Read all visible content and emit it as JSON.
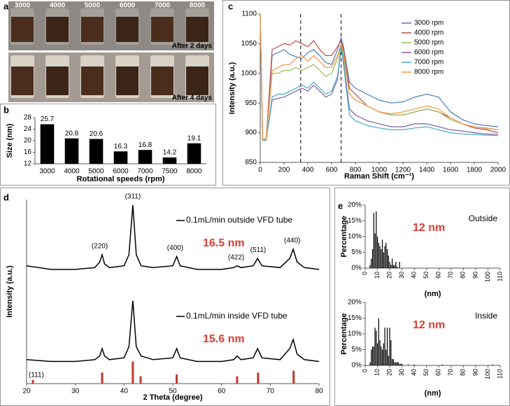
{
  "photo_panel": {
    "panel_label": "a",
    "tube_labels": [
      "3000",
      "4000",
      "5000",
      "6000",
      "7000",
      "8000"
    ],
    "captions": [
      "After 2 days",
      "After 4 days"
    ]
  },
  "chart_data": [
    {
      "type": "bar",
      "panel_label": "b",
      "categories": [
        "3000",
        "4000",
        "5000",
        "6000",
        "7000",
        "7500",
        "8000"
      ],
      "values": [
        25.7,
        20.8,
        20.6,
        16.3,
        16.8,
        14.2,
        19.1
      ],
      "color": "#000000",
      "ylim": [
        12,
        28
      ],
      "yticks": [
        12,
        16,
        20,
        24,
        28
      ],
      "xlabel": "Rotational speeds (rpm)",
      "ylabel": "Size (nm)"
    },
    {
      "type": "line",
      "panel_label": "c",
      "x": [
        0,
        20,
        50,
        100,
        150,
        200,
        250,
        300,
        350,
        400,
        450,
        500,
        550,
        600,
        650,
        680,
        700,
        750,
        800,
        900,
        1000,
        1100,
        1200,
        1300,
        1400,
        1500,
        1600,
        1700,
        1800,
        1900,
        2000
      ],
      "series": [
        {
          "name": "3000 rpm",
          "color": "#4a7ebb",
          "values": [
            1100,
            890,
            890,
            1030,
            1035,
            1040,
            1032,
            1028,
            1025,
            1035,
            1040,
            1030,
            1018,
            1015,
            1040,
            1060,
            1045,
            985,
            975,
            965,
            955,
            950,
            952,
            960,
            965,
            960,
            935,
            922,
            915,
            912,
            910
          ]
        },
        {
          "name": "4000 rpm",
          "color": "#be4b48",
          "values": [
            1100,
            888,
            888,
            1040,
            1045,
            1050,
            1048,
            1055,
            1050,
            1045,
            1055,
            1040,
            1030,
            1030,
            1045,
            1055,
            1040,
            975,
            965,
            945,
            935,
            930,
            930,
            935,
            940,
            935,
            925,
            915,
            908,
            905,
            900
          ]
        },
        {
          "name": "5000 rpm",
          "color": "#98b954",
          "values": [
            1100,
            890,
            890,
            1000,
            1000,
            1005,
            1005,
            1010,
            1005,
            1010,
            1015,
            1005,
            995,
            1000,
            1025,
            1050,
            1030,
            965,
            955,
            945,
            935,
            930,
            930,
            935,
            940,
            935,
            922,
            915,
            910,
            908,
            905
          ]
        },
        {
          "name": "6000 rpm",
          "color": "#7d60a0",
          "values": [
            1100,
            888,
            888,
            955,
            958,
            960,
            965,
            970,
            975,
            970,
            980,
            970,
            960,
            965,
            990,
            1045,
            1020,
            940,
            930,
            920,
            915,
            910,
            910,
            915,
            915,
            910,
            905,
            903,
            900,
            898,
            897
          ]
        },
        {
          "name": "7000 rpm",
          "color": "#46aac5",
          "values": [
            1100,
            887,
            887,
            960,
            965,
            965,
            970,
            975,
            980,
            975,
            985,
            975,
            965,
            970,
            995,
            1048,
            1015,
            930,
            920,
            912,
            908,
            905,
            905,
            908,
            910,
            905,
            900,
            898,
            897,
            896,
            895
          ]
        },
        {
          "name": "8000 rpm",
          "color": "#f79646",
          "values": [
            1100,
            888,
            888,
            1005,
            1010,
            1015,
            1015,
            1025,
            1030,
            1020,
            1030,
            1020,
            1010,
            1010,
            1030,
            1050,
            1035,
            965,
            955,
            945,
            935,
            932,
            935,
            940,
            945,
            940,
            925,
            915,
            910,
            907,
            905
          ]
        }
      ],
      "xlim": [
        0,
        2000
      ],
      "xticks": [
        0,
        200,
        400,
        600,
        800,
        1000,
        1200,
        1400,
        1600,
        1800,
        2000
      ],
      "ylim": [
        850,
        1100
      ],
      "yticks": [
        850,
        900,
        950,
        1000,
        1050,
        1100
      ],
      "vlines": [
        340,
        680
      ],
      "xlabel": "Raman Shift (cm⁻¹)",
      "ylabel": "Intensity (a.u.)"
    },
    {
      "type": "line",
      "panel_label": "d",
      "x": [
        20,
        25,
        30,
        34,
        35,
        35.5,
        36,
        37,
        40,
        41,
        41.8,
        42.5,
        43.5,
        46,
        50,
        50.8,
        51.5,
        55,
        60,
        62.5,
        63.2,
        64,
        66.5,
        67.4,
        68.3,
        72,
        74,
        74.7,
        75.5,
        77,
        80
      ],
      "series": [
        {
          "name": "0.1mL/min outside VFD tube",
          "size_label": "16.5 nm",
          "color": "#000000",
          "values": [
            64,
            62,
            62,
            63,
            66,
            70,
            65,
            63,
            64,
            70,
            97,
            70,
            64,
            63,
            64,
            69,
            64,
            62,
            62,
            63,
            64,
            63,
            64,
            68,
            64,
            63,
            68,
            73,
            66,
            63,
            62
          ]
        },
        {
          "name": "0.1mL/min inside VFD tube",
          "size_label": "15.6 nm",
          "color": "#000000",
          "values": [
            13,
            12,
            12,
            13,
            15,
            19,
            15,
            13,
            14,
            20,
            45,
            20,
            15,
            13,
            14,
            19,
            14,
            12,
            12,
            13,
            15,
            13,
            14,
            19,
            14,
            13,
            19,
            24,
            16,
            13,
            12
          ]
        }
      ],
      "reference": {
        "color": "#c0392b",
        "x": [
          21.3,
          35.5,
          41.8,
          43.4,
          50.8,
          63.2,
          67.5,
          74.8
        ],
        "values": [
          2,
          6,
          12,
          4,
          5,
          4,
          6,
          7
        ]
      },
      "peak_labels": [
        {
          "label": "(111)",
          "x": 22
        },
        {
          "label": "(220)",
          "x": 35
        },
        {
          "label": "(311)",
          "x": 41.8
        },
        {
          "label": "(400)",
          "x": 50.5
        },
        {
          "label": "(422)",
          "x": 63
        },
        {
          "label": "(511)",
          "x": 67.5
        },
        {
          "label": "(440)",
          "x": 74.5
        }
      ],
      "xlim": [
        20,
        80
      ],
      "xticks": [
        20,
        30,
        40,
        50,
        60,
        70,
        80
      ],
      "ylim": [
        0,
        100
      ],
      "xlabel": "2 Theta (degree)",
      "ylabel": "Intensity (a.u.)"
    },
    {
      "type": "column",
      "panel_label": "e",
      "group_label": "Outside",
      "size_label": "12 nm",
      "color": "#000000",
      "x": [
        4,
        5,
        6,
        7,
        8,
        9,
        10,
        11,
        12,
        13,
        14,
        15,
        16,
        17,
        18,
        19,
        20,
        21,
        22,
        23,
        24,
        25,
        26,
        28
      ],
      "values": [
        1,
        3,
        6,
        17.5,
        11,
        18,
        10,
        8,
        7,
        6,
        9,
        5,
        7,
        8,
        6,
        4,
        2,
        1,
        3,
        1,
        1,
        2,
        0.5,
        2
      ],
      "xlim": [
        0,
        110
      ],
      "xticks": [
        0,
        10,
        20,
        30,
        40,
        50,
        60,
        70,
        80,
        90,
        100,
        110
      ],
      "ylim": [
        0,
        20
      ],
      "yticks": [
        {
          "value": 0,
          "label": "0%"
        },
        {
          "value": 5,
          "label": "5%"
        },
        {
          "value": 10,
          "label": "10%"
        },
        {
          "value": 15,
          "label": "15%"
        },
        {
          "value": 20,
          "label": "20%"
        }
      ],
      "xlabel": "(nm)",
      "ylabel": "Percentage"
    },
    {
      "type": "column",
      "group_label": "Inside",
      "size_label": "12 nm",
      "color": "#000000",
      "x": [
        4,
        5,
        6,
        7,
        8,
        9,
        10,
        11,
        12,
        13,
        14,
        15,
        16,
        17,
        18,
        19,
        20,
        21,
        22,
        23,
        24,
        25,
        26,
        27,
        28,
        29,
        30,
        35,
        40,
        63,
        104
      ],
      "values": [
        1,
        5,
        6,
        6,
        12,
        11,
        7,
        15,
        8,
        6,
        5,
        7,
        12,
        5,
        12,
        3,
        12,
        8,
        2,
        2,
        1,
        1,
        1,
        1,
        0.5,
        0.5,
        0.5,
        0.3,
        0.3,
        0.3,
        0.3
      ],
      "xlim": [
        0,
        110
      ],
      "xticks": [
        0,
        10,
        20,
        30,
        40,
        50,
        60,
        70,
        80,
        90,
        100,
        110
      ],
      "ylim": [
        0,
        20
      ],
      "yticks": [
        {
          "value": 0,
          "label": "0%"
        },
        {
          "value": 5,
          "label": "5%"
        },
        {
          "value": 10,
          "label": "10%"
        },
        {
          "value": 15,
          "label": "15%"
        },
        {
          "value": 20,
          "label": "20%"
        }
      ],
      "xlabel": "(nm)",
      "ylabel": "Percentage"
    }
  ]
}
